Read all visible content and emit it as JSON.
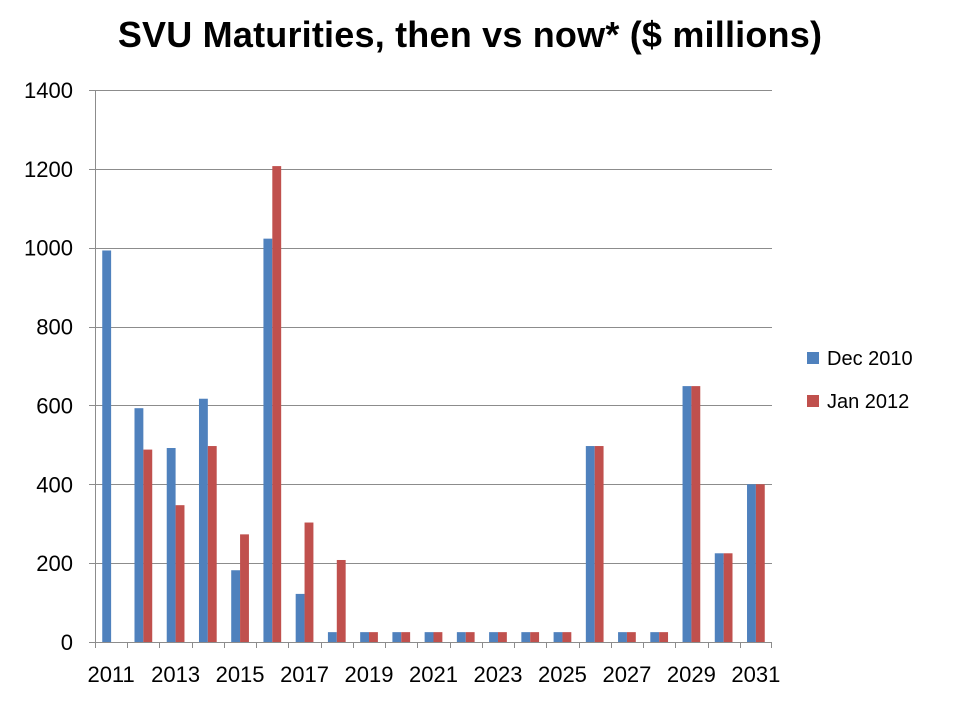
{
  "chart_data": {
    "type": "bar",
    "title": "SVU Maturities, then vs now* ($ millions)",
    "xlabel": "",
    "ylabel": "",
    "ylim": [
      0,
      1400
    ],
    "yticks": [
      0,
      200,
      400,
      600,
      800,
      1000,
      1200,
      1400
    ],
    "grid": true,
    "legend_position": "right",
    "categories": [
      "2011",
      "2012",
      "2013",
      "2014",
      "2015",
      "2016",
      "2017",
      "2018",
      "2019",
      "2020",
      "2021",
      "2022",
      "2023",
      "2024",
      "2025",
      "2026",
      "2027",
      "2028",
      "2029",
      "2030",
      "2031"
    ],
    "x_tick_labels": [
      "2011",
      "2013",
      "2015",
      "2017",
      "2019",
      "2021",
      "2023",
      "2025",
      "2027",
      "2029",
      "2031"
    ],
    "series": [
      {
        "name": "Dec 2010",
        "color": "#4F81BD",
        "values": [
          993,
          593,
          492,
          617,
          182,
          1023,
          122,
          25,
          25,
          25,
          25,
          25,
          25,
          25,
          25,
          497,
          25,
          25,
          649,
          225,
          400
        ]
      },
      {
        "name": "Jan 2012",
        "color": "#C0504D",
        "values": [
          0,
          488,
          347,
          497,
          273,
          1207,
          303,
          208,
          25,
          25,
          25,
          25,
          25,
          25,
          25,
          497,
          25,
          25,
          649,
          225,
          400
        ]
      }
    ]
  }
}
